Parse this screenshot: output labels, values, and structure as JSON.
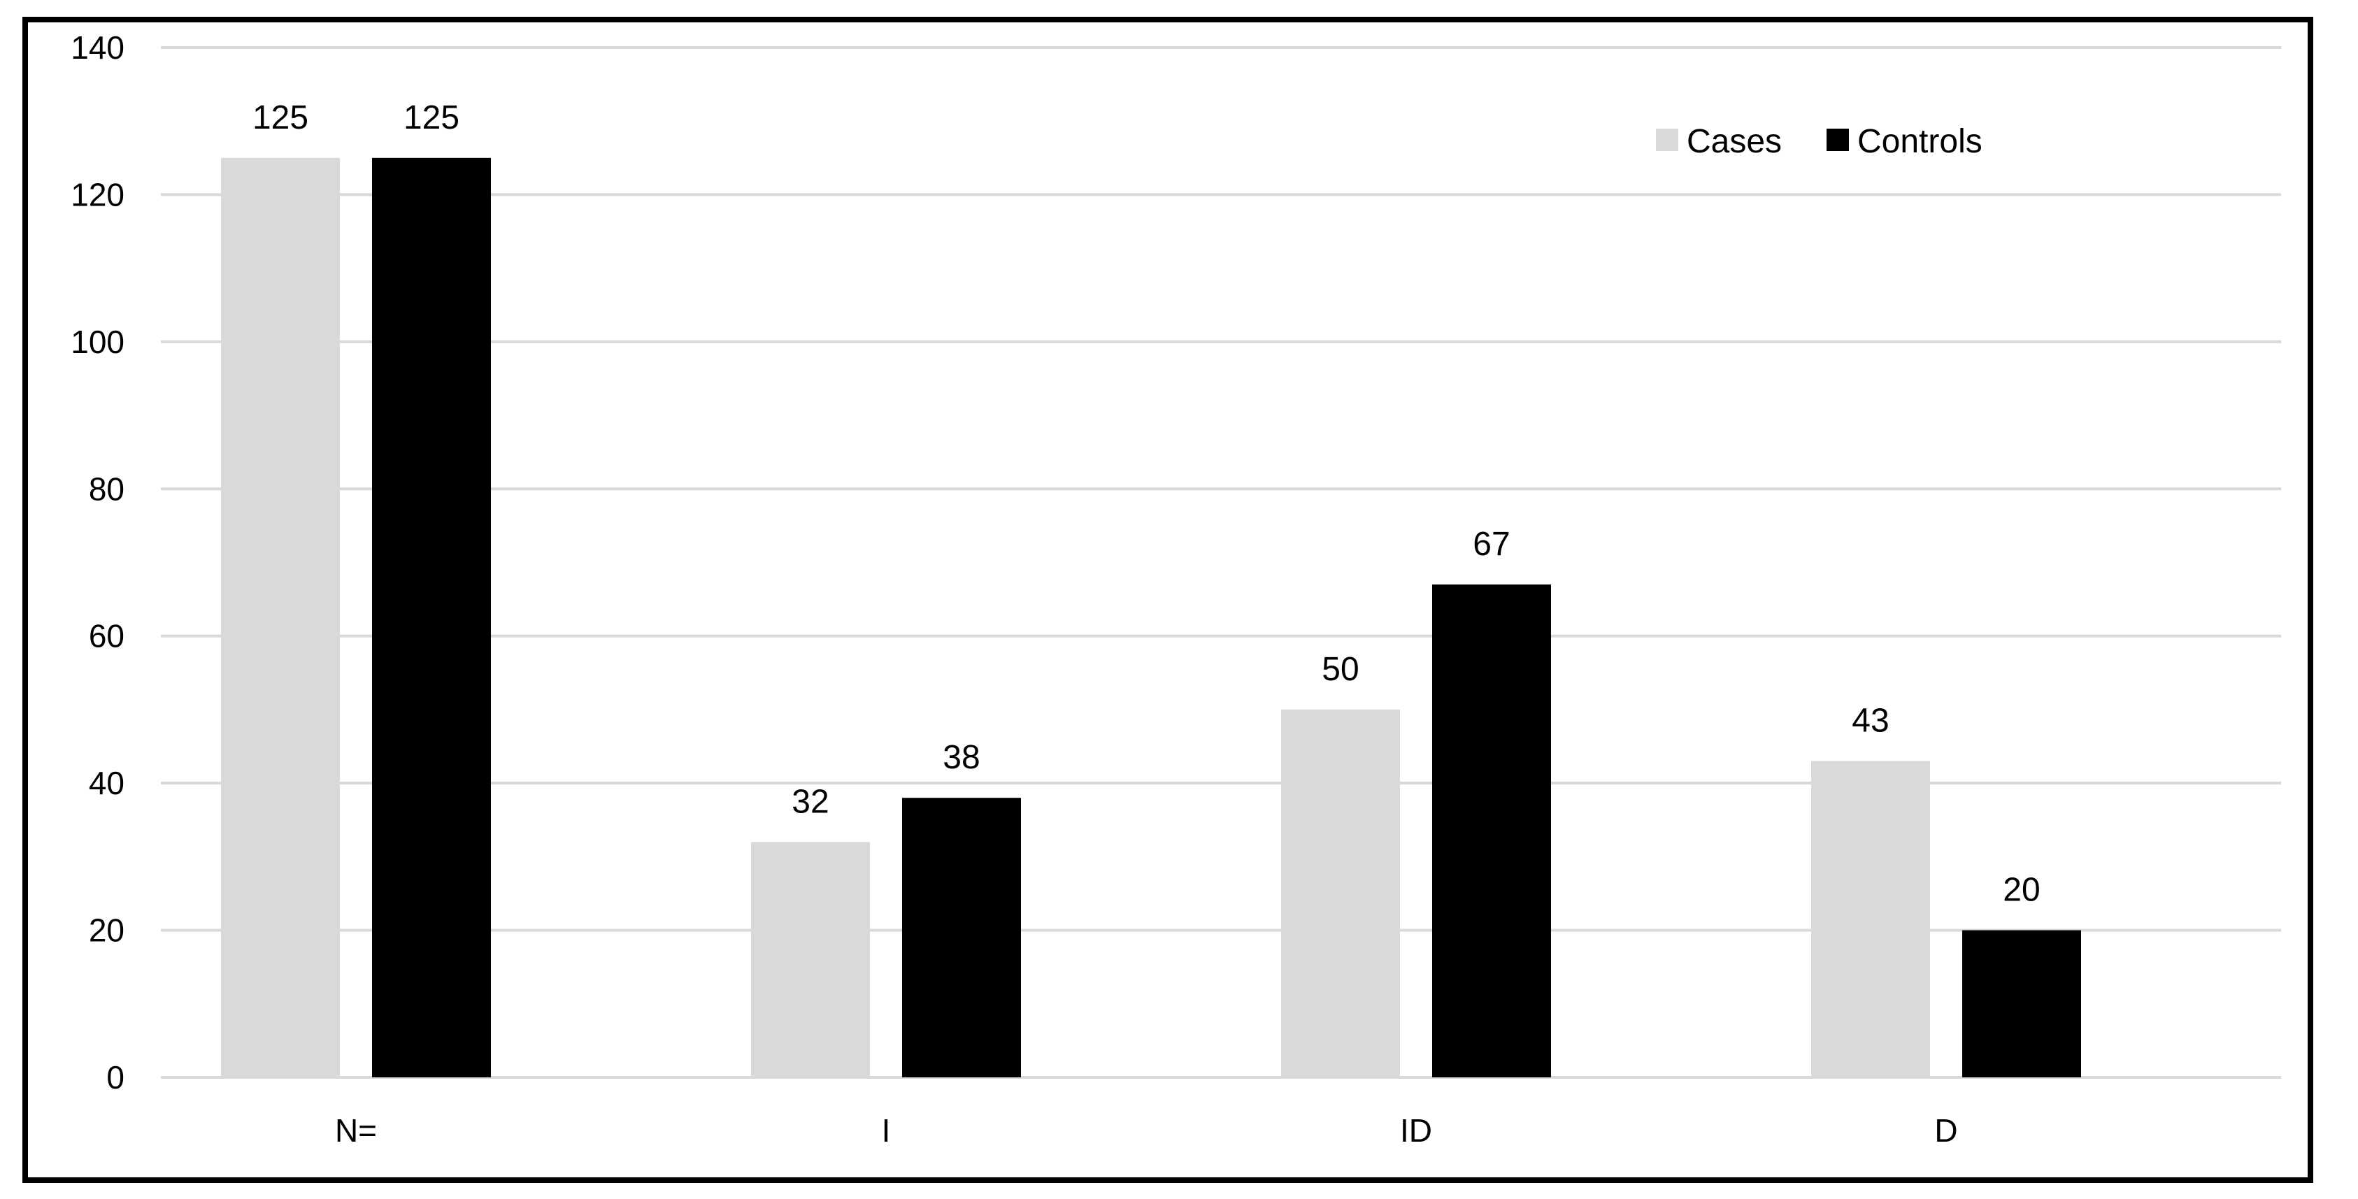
{
  "chart_data": {
    "type": "bar",
    "categories": [
      "N=",
      "I",
      "ID",
      "D"
    ],
    "series": [
      {
        "name": "Cases",
        "values": [
          125,
          32,
          50,
          43
        ],
        "color": "#d9d9d9"
      },
      {
        "name": "Controls",
        "values": [
          125,
          38,
          67,
          20
        ],
        "color": "#000000"
      }
    ],
    "title": "",
    "xlabel": "",
    "ylabel": "",
    "ylim": [
      0,
      140
    ],
    "yticks": [
      0,
      20,
      40,
      60,
      80,
      100,
      120,
      140
    ],
    "grid": true,
    "gridline_color": "#d9d9d9",
    "legend_position": "top-right",
    "data_labels": true
  }
}
